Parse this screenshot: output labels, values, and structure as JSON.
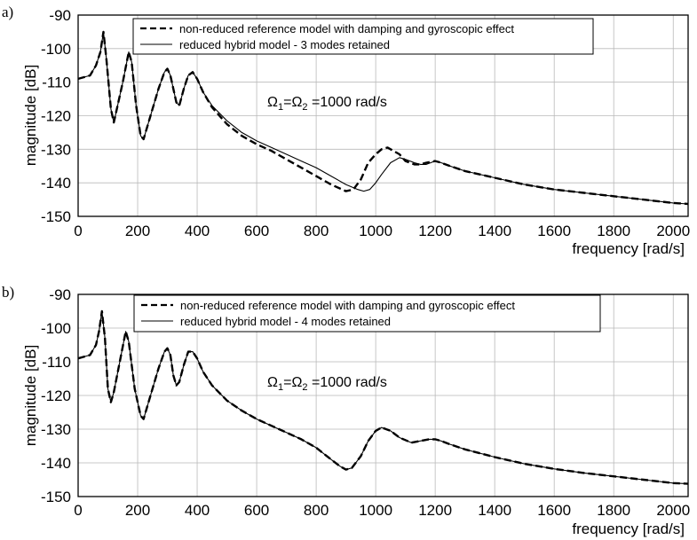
{
  "chart_data": [
    {
      "type": "line",
      "panel_label": "a)",
      "xlabel": "frequency [rad/s]",
      "ylabel": "magnitude [dB]",
      "xlim": [
        0,
        2050
      ],
      "ylim": [
        -150,
        -90
      ],
      "xticks": [
        0,
        200,
        400,
        600,
        800,
        1000,
        1200,
        1400,
        1600,
        1800,
        2000
      ],
      "yticks": [
        -150,
        -140,
        -130,
        -120,
        -110,
        -100,
        -90
      ],
      "grid": true,
      "legend_position": "top",
      "annotation": {
        "omega1": "Ω",
        "sub1": "1",
        "eq": "=",
        "omega2": "Ω",
        "sub2": "2",
        "value": " =1000 rad/s"
      },
      "series": [
        {
          "name": "non-reduced reference model with damping and gyroscopic effect",
          "style": "dashed",
          "x": [
            0,
            40,
            60,
            75,
            85,
            95,
            110,
            120,
            130,
            150,
            170,
            180,
            195,
            210,
            220,
            240,
            270,
            290,
            300,
            310,
            330,
            340,
            355,
            370,
            385,
            400,
            420,
            450,
            500,
            550,
            600,
            650,
            700,
            750,
            800,
            850,
            900,
            925,
            950,
            975,
            1000,
            1020,
            1040,
            1060,
            1080,
            1100,
            1130,
            1150,
            1170,
            1200,
            1220,
            1250,
            1300,
            1400,
            1500,
            1600,
            1700,
            1800,
            1900,
            2000,
            2050
          ],
          "y": [
            -109,
            -108,
            -105,
            -101,
            -95,
            -103,
            -118,
            -122,
            -118,
            -110,
            -101,
            -104,
            -117,
            -126,
            -127,
            -121,
            -112,
            -107,
            -106,
            -108,
            -116,
            -117,
            -112,
            -108,
            -107,
            -109,
            -113,
            -117.5,
            -122.5,
            -126,
            -128.5,
            -130.5,
            -133,
            -135.5,
            -138,
            -140.5,
            -142.5,
            -142,
            -139,
            -134,
            -131.5,
            -130,
            -129.5,
            -130.5,
            -131.5,
            -133.5,
            -134.5,
            -134.5,
            -134,
            -133.5,
            -134,
            -135,
            -136.5,
            -138.5,
            -140.5,
            -142,
            -143,
            -144,
            -145,
            -146,
            -146.3
          ]
        },
        {
          "name": "reduced hybrid model - 3 modes retained",
          "style": "solid",
          "x": [
            0,
            40,
            60,
            75,
            85,
            95,
            110,
            120,
            130,
            150,
            170,
            180,
            195,
            210,
            220,
            240,
            270,
            290,
            300,
            310,
            330,
            340,
            355,
            370,
            385,
            400,
            420,
            450,
            500,
            550,
            600,
            650,
            700,
            750,
            800,
            850,
            900,
            940,
            960,
            980,
            1000,
            1020,
            1050,
            1080,
            1100,
            1130,
            1150,
            1170,
            1200,
            1220,
            1250,
            1300,
            1400,
            1500,
            1600,
            1700,
            1800,
            1900,
            2000,
            2050
          ],
          "y": [
            -109,
            -108,
            -105,
            -101,
            -95,
            -103,
            -118,
            -122,
            -118,
            -110,
            -101,
            -104,
            -117,
            -126,
            -127,
            -121,
            -112,
            -107,
            -106,
            -108,
            -116,
            -117,
            -112,
            -108,
            -107,
            -109,
            -113,
            -117,
            -121.5,
            -125,
            -127.5,
            -129.5,
            -131.5,
            -133.5,
            -135.5,
            -138,
            -140.5,
            -142,
            -142.5,
            -142,
            -140,
            -137.5,
            -134,
            -132.5,
            -133,
            -134,
            -134.5,
            -134.5,
            -133.5,
            -134,
            -135,
            -136.5,
            -138.5,
            -140.5,
            -142,
            -143,
            -144,
            -145,
            -146,
            -146.3
          ]
        }
      ]
    },
    {
      "type": "line",
      "panel_label": "b)",
      "xlabel": "frequency [rad/s]",
      "ylabel": "magnitude [dB]",
      "xlim": [
        0,
        2050
      ],
      "ylim": [
        -150,
        -90
      ],
      "xticks": [
        0,
        200,
        400,
        600,
        800,
        1000,
        1200,
        1400,
        1600,
        1800,
        2000
      ],
      "yticks": [
        -150,
        -140,
        -130,
        -120,
        -110,
        -100,
        -90
      ],
      "grid": true,
      "legend_position": "top",
      "annotation": {
        "omega1": "Ω",
        "sub1": "1",
        "eq": "=",
        "omega2": "Ω",
        "sub2": "2",
        "value": " =1000 rad/s"
      },
      "series": [
        {
          "name": "non-reduced reference model with damping and gyroscopic effect",
          "style": "dashed",
          "x": [
            0,
            40,
            60,
            70,
            80,
            90,
            100,
            110,
            120,
            140,
            160,
            170,
            190,
            210,
            220,
            240,
            270,
            290,
            300,
            310,
            320,
            330,
            340,
            355,
            370,
            385,
            400,
            420,
            450,
            500,
            550,
            600,
            650,
            700,
            750,
            800,
            850,
            880,
            900,
            920,
            950,
            975,
            1000,
            1020,
            1050,
            1080,
            1120,
            1150,
            1180,
            1200,
            1220,
            1250,
            1300,
            1400,
            1500,
            1600,
            1700,
            1800,
            1900,
            2000,
            2050
          ],
          "y": [
            -109,
            -108,
            -105,
            -101,
            -95,
            -103,
            -118,
            -122,
            -119,
            -110,
            -101,
            -104,
            -118,
            -126,
            -127,
            -121,
            -112,
            -107,
            -106,
            -108,
            -114,
            -117,
            -116,
            -111,
            -107,
            -107,
            -109,
            -113,
            -117,
            -121.5,
            -124.5,
            -127,
            -129,
            -131,
            -133,
            -135.5,
            -139,
            -141,
            -142,
            -141.5,
            -138,
            -133.5,
            -130.5,
            -129.5,
            -130.5,
            -132.5,
            -134,
            -133.5,
            -133,
            -133,
            -133.5,
            -134.5,
            -136,
            -138.3,
            -140.3,
            -141.8,
            -143,
            -144,
            -145,
            -146,
            -146.2
          ]
        },
        {
          "name": "reduced hybrid model - 4 modes retained",
          "style": "solid",
          "x": [
            0,
            40,
            60,
            70,
            80,
            90,
            100,
            110,
            120,
            140,
            160,
            170,
            190,
            210,
            220,
            240,
            270,
            290,
            300,
            310,
            320,
            330,
            340,
            355,
            370,
            385,
            400,
            420,
            450,
            500,
            550,
            600,
            650,
            700,
            750,
            800,
            850,
            880,
            900,
            920,
            950,
            975,
            1000,
            1020,
            1050,
            1080,
            1120,
            1150,
            1180,
            1200,
            1220,
            1250,
            1300,
            1400,
            1500,
            1600,
            1700,
            1800,
            1900,
            2000,
            2050
          ],
          "y": [
            -109,
            -108,
            -105,
            -101,
            -95,
            -103,
            -118,
            -122,
            -119,
            -110,
            -101,
            -104,
            -118,
            -126,
            -127,
            -121,
            -112,
            -107,
            -106,
            -108,
            -114,
            -117,
            -116,
            -111,
            -107,
            -107,
            -109,
            -113,
            -117,
            -121.5,
            -124.5,
            -127,
            -129,
            -131,
            -133,
            -135.5,
            -139,
            -141,
            -142,
            -141.5,
            -138,
            -133.5,
            -130.5,
            -129.5,
            -130.5,
            -132.5,
            -134,
            -133.5,
            -133,
            -133,
            -133.5,
            -134.5,
            -136,
            -138.3,
            -140.3,
            -141.8,
            -143,
            -144,
            -145,
            -146,
            -146.2
          ]
        }
      ]
    }
  ]
}
